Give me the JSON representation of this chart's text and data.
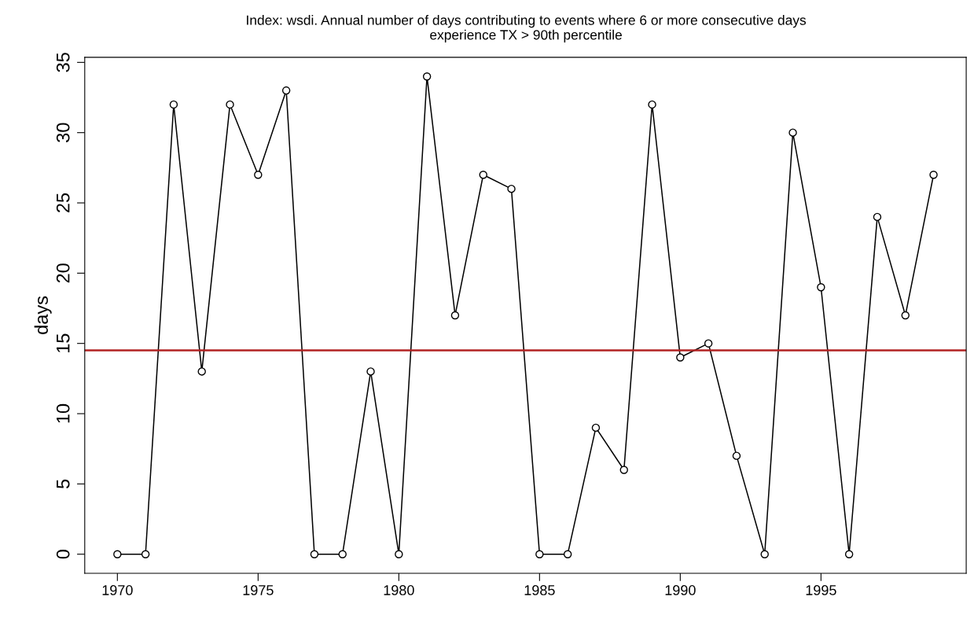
{
  "chart_data": {
    "type": "line",
    "subtitle": "Index: wsdi. Annual number of days contributing to events where 6 or more consecutive days\nexperience TX > 90th percentile",
    "ylabel": "days",
    "x": [
      1970,
      1971,
      1972,
      1973,
      1974,
      1975,
      1976,
      1977,
      1978,
      1979,
      1980,
      1981,
      1982,
      1983,
      1984,
      1985,
      1986,
      1987,
      1988,
      1989,
      1990,
      1991,
      1992,
      1993,
      1994,
      1995,
      1996,
      1997,
      1998,
      1999
    ],
    "series": [
      {
        "color": "#000000",
        "values": [
          0,
          0,
          32,
          13,
          32,
          27,
          33,
          0,
          0,
          13,
          0,
          34,
          17,
          27,
          26,
          0,
          0,
          9,
          6,
          32,
          14,
          15,
          7,
          0,
          30,
          19,
          0,
          24,
          17,
          27
        ]
      }
    ],
    "xlim": [
      1968.84,
      2000.16
    ],
    "xticks": [
      1970,
      1975,
      1980,
      1985,
      1990,
      1995
    ],
    "ylim": [
      -1.36,
      35.36
    ],
    "yticks": [
      0,
      5,
      10,
      15,
      20,
      25,
      30,
      35
    ],
    "ref_lines": [
      {
        "axis": "y",
        "value": 14.5,
        "color": "#b22222"
      }
    ],
    "marker": "circle",
    "line_style": "solid",
    "grid": false,
    "legend": false
  }
}
